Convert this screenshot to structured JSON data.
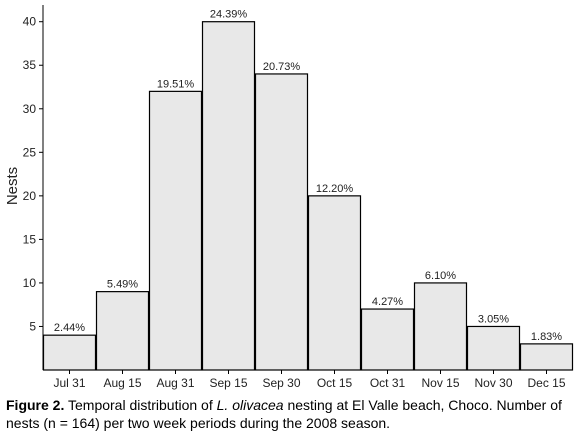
{
  "chart_data": {
    "type": "bar",
    "title": "",
    "xlabel": "",
    "ylabel": "Nests",
    "ylim": [
      0,
      41
    ],
    "yticks": [
      5,
      10,
      15,
      20,
      25,
      30,
      35,
      40
    ],
    "categories": [
      "Jul 31",
      "Aug 15",
      "Aug 31",
      "Sep 15",
      "Sep 30",
      "Oct 15",
      "Oct 31",
      "Nov 15",
      "Nov 30",
      "Dec 15"
    ],
    "values": [
      4,
      9,
      32,
      40,
      34,
      20,
      7,
      10,
      5,
      3
    ],
    "data_labels": [
      "2.44%",
      "5.49%",
      "19.51%",
      "24.39%",
      "20.73%",
      "12.20%",
      "4.27%",
      "6.10%",
      "3.05%",
      "1.83%"
    ],
    "bar_fill": "#e8e8e8",
    "bar_stroke": "#000000",
    "grid": false
  },
  "caption": {
    "label": "Figure 2.",
    "text_before": " Temporal distribution of ",
    "species": "L. olivacea",
    "text_after": " nesting at El Valle beach, Choco. Number of nests (n = 164) per two week periods during the 2008 season."
  }
}
